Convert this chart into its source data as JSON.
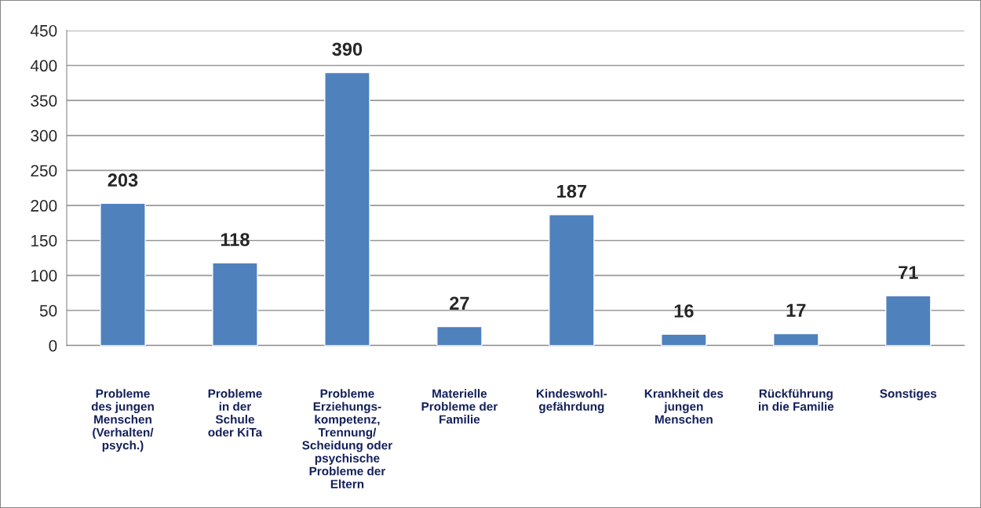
{
  "chart_data": {
    "type": "bar",
    "categories": [
      "Probleme\ndes jungen\nMenschen\n(Verhalten/\npsych.)",
      "Probleme\nin der\nSchule\noder KiTa",
      "Probleme\nErziehungs-\nkompetenz,\nTrennung/\nScheidung oder\npsychische\nProbleme der\nEltern",
      "Materielle\nProbleme der\nFamilie",
      "Kindeswohl-\ngefährdung",
      "Krankheit des\njungen\nMenschen",
      "Rückführung\nin die Familie",
      "Sonstiges"
    ],
    "values": [
      203,
      118,
      390,
      27,
      187,
      16,
      17,
      71
    ],
    "color": "#4f81bd",
    "ylim": [
      0,
      450
    ],
    "yticks": [
      0,
      50,
      100,
      150,
      200,
      250,
      300,
      350,
      400,
      450
    ],
    "grid": "y",
    "data_labels": true
  }
}
